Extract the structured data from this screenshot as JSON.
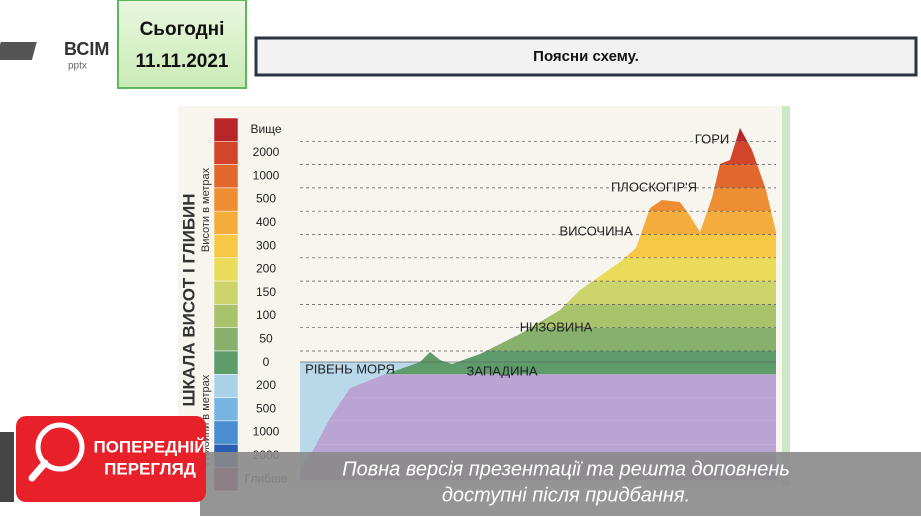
{
  "logo": {
    "name": "ВСІМ",
    "sub": "pptx"
  },
  "date_box": {
    "label": "Сьогодні",
    "date": "11.11.2021"
  },
  "header": {
    "title": "Поясни схему."
  },
  "diagram": {
    "scale_title": "ШКАЛА ВИСОТ І ГЛИБИН",
    "heights_label": "Висоти в метрах",
    "depths_label": "Глибини в метрах",
    "scale_labels": [
      "Вище",
      "2000",
      "1000",
      "500",
      "400",
      "300",
      "200",
      "150",
      "100",
      "50",
      "0",
      "200",
      "500",
      "1000",
      "2000",
      "Глибше"
    ],
    "landforms": [
      "ГОРИ",
      "ПЛОСКОГІР'Я",
      "ВИСОЧИНА",
      "НИЗОВИНА",
      "РІВЕНЬ МОРЯ",
      "ЗАПАДИНА"
    ]
  },
  "preview": {
    "badge_line1": "ПОПЕРЕДНІЙ",
    "badge_line2": "ПЕРЕГЛЯД",
    "note_line1": "Повна версія презентації та решта доповнень",
    "note_line2": "доступні після придбання."
  }
}
